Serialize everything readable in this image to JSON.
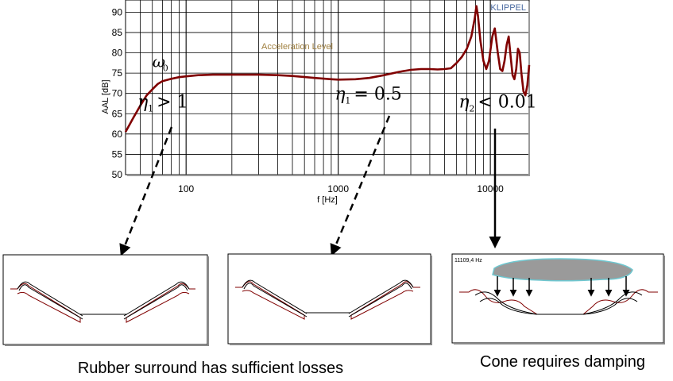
{
  "chart_data": {
    "type": "line",
    "title": "Acceleration Level",
    "brand": "KLIPPEL",
    "xlabel": "f [Hz]",
    "ylabel": "AAL [dB]",
    "xscale": "log",
    "xlim": [
      40,
      18000
    ],
    "ylim": [
      50,
      93
    ],
    "grid": true,
    "x_ticks": [
      {
        "value": 100,
        "label": "100"
      },
      {
        "value": 1000,
        "label": "1000"
      },
      {
        "value": 10000,
        "label": "10000"
      }
    ],
    "y_ticks": [
      50,
      55,
      60,
      65,
      70,
      75,
      80,
      85,
      90
    ],
    "series": [
      {
        "color": "#800000",
        "x": [
          40,
          45,
          50,
          55,
          60,
          65,
          70,
          80,
          90,
          100,
          120,
          150,
          200,
          300,
          400,
          500,
          700,
          900,
          1000,
          1300,
          1600,
          2000,
          2500,
          3000,
          3500,
          4000,
          4500,
          5000,
          5500,
          6000,
          6500,
          7000,
          7500,
          7900,
          8100,
          8300,
          8600,
          9000,
          9400,
          9800,
          10300,
          10700,
          11200,
          11600,
          12000,
          12400,
          12800,
          13200,
          13600,
          14000,
          14400,
          14800,
          15200,
          15600,
          16000,
          16500,
          17000,
          17500,
          18000
        ],
        "y": [
          60.5,
          64,
          67,
          69.5,
          71,
          72.3,
          73,
          73.6,
          74,
          74.2,
          74.5,
          74.6,
          74.6,
          74.6,
          74.5,
          74.3,
          73.8,
          73.5,
          73.4,
          73.5,
          73.8,
          74.5,
          75.3,
          75.8,
          76,
          76,
          75.9,
          76,
          76.2,
          77.5,
          79,
          81,
          84,
          88.5,
          91.5,
          89,
          83,
          78,
          76,
          78,
          84,
          86,
          80,
          76,
          75.5,
          78,
          82,
          84,
          79,
          74.5,
          73.5,
          76,
          81,
          80,
          75,
          70.5,
          69.5,
          72,
          77
        ]
      }
    ],
    "annotations": [
      {
        "x": 60,
        "y": 76.5,
        "symbol": "ω",
        "subscript": "0"
      },
      {
        "x": 48,
        "y": 66.5,
        "symbol": "η",
        "subscript": "1",
        "relation": ">",
        "value": "1"
      },
      {
        "x": 950,
        "y": 68.5,
        "symbol": "η",
        "subscript": "1",
        "relation": "=",
        "value": "0.5"
      },
      {
        "x": 6200,
        "y": 66.5,
        "symbol": "η",
        "subscript": "2",
        "relation": "<",
        "value": "0.01"
      }
    ]
  },
  "panels": [
    {
      "caption": ""
    },
    {
      "caption": ""
    },
    {
      "caption": "",
      "frequency_label": "11109,4 Hz"
    }
  ],
  "captions": {
    "left": "Rubber surround has sufficient losses",
    "right": "Cone requires damping"
  }
}
